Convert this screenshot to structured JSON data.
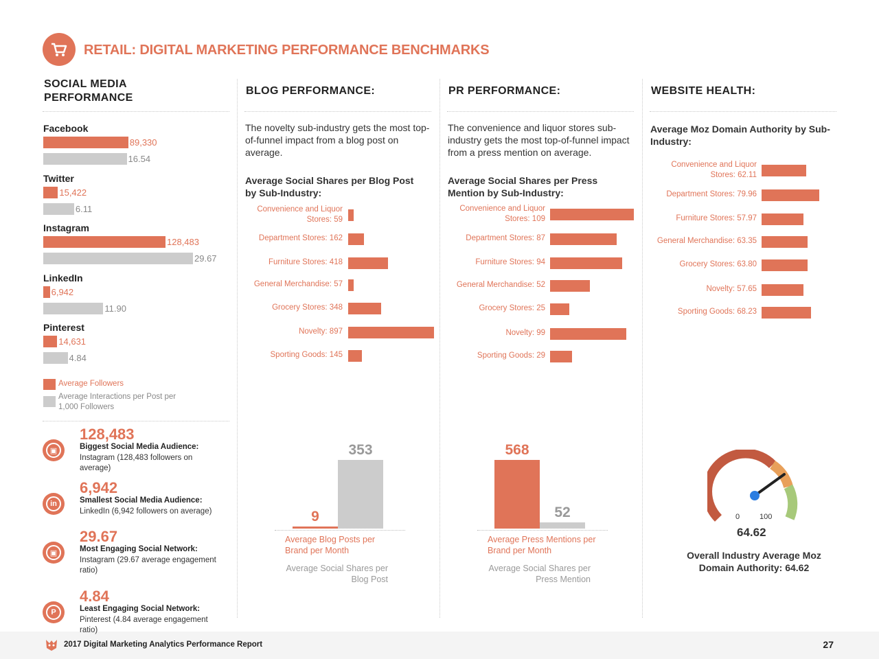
{
  "header": {
    "title": "RETAIL: DIGITAL MARKETING PERFORMANCE BENCHMARKS",
    "icon": "shopping-cart-icon",
    "accent": "#e07458"
  },
  "columns": {
    "social": {
      "heading_line1": "SOCIAL MEDIA",
      "heading_line2": "PERFORMANCE"
    },
    "blog": {
      "heading": "BLOG PERFORMANCE:"
    },
    "pr": {
      "heading": "PR PERFORMANCE:"
    },
    "web": {
      "heading": "WEBSITE HEALTH:"
    }
  },
  "blog": {
    "intro": "The novelty sub-industry gets the most top-of-funnel impact from a blog post on average.",
    "chart_title": "Average Social Shares per Blog Post by Sub-Industry:"
  },
  "pr": {
    "intro": "The convenience and liquor stores sub-industry gets the most top-of-funnel impact from a press mention on average.",
    "chart_title": "Average Social Shares per Press Mention by Sub-Industry:"
  },
  "web": {
    "chart_title": "Average Moz Domain Authority by Sub-Industry:",
    "gauge": {
      "min_label": "0",
      "max_label": "100",
      "value_label": "64.62",
      "caption": "Overall Industry Average Moz Domain Authority: 64.62"
    }
  },
  "social_legend": {
    "followers": "Average Followers",
    "interactions": "Average Interactions per Post per 1,000 Followers"
  },
  "social_stats": [
    {
      "value": "128,483",
      "title": "Biggest Social Media Audience:",
      "desc": "Instagram (128,483 followers on average)",
      "icon": "instagram-icon"
    },
    {
      "value": "6,942",
      "title": "Smallest Social Media Audience:",
      "desc": "LinkedIn (6,942 followers on average)",
      "icon": "linkedin-icon"
    },
    {
      "value": "29.67",
      "title": "Most Engaging Social Network:",
      "desc": "Instagram (29.67 average engagement ratio)",
      "icon": "instagram-icon"
    },
    {
      "value": "4.84",
      "title": "Least Engaging Social Network:",
      "desc": "Pinterest (4.84 average engagement ratio)",
      "icon": "pinterest-icon"
    }
  ],
  "footer": {
    "report": "2017 Digital Marketing Analytics Performance Report",
    "page": "27"
  },
  "chart_data": [
    {
      "id": "social",
      "type": "bar",
      "orientation": "horizontal",
      "categories": [
        "Facebook",
        "Twitter",
        "Instagram",
        "LinkedIn",
        "Pinterest"
      ],
      "series": [
        {
          "name": "Average Followers",
          "values": [
            89330,
            15422,
            128483,
            6942,
            14631
          ],
          "labels": [
            "89,330",
            "15,422",
            "128,483",
            "6,942",
            "14,631"
          ],
          "color": "#e07458"
        },
        {
          "name": "Average Interactions per Post per 1,000 Followers",
          "values": [
            16.54,
            6.11,
            29.67,
            11.9,
            4.84
          ],
          "labels": [
            "16.54",
            "6.11",
            "29.67",
            "11.90",
            "4.84"
          ],
          "color": "#cccccc"
        }
      ]
    },
    {
      "id": "blog_subindustry",
      "type": "bar",
      "orientation": "horizontal",
      "title": "Average Social Shares per Blog Post by Sub-Industry:",
      "categories": [
        "Convenience and Liquor Stores: 59",
        "Department Stores: 162",
        "Furniture Stores: 418",
        "General Merchandise: 57",
        "Grocery Stores: 348",
        "Novelty: 897",
        "Sporting Goods: 145"
      ],
      "values": [
        59,
        162,
        418,
        57,
        348,
        897,
        145
      ],
      "color": "#e07458"
    },
    {
      "id": "pr_subindustry",
      "type": "bar",
      "orientation": "horizontal",
      "title": "Average Social Shares per Press Mention by Sub-Industry:",
      "categories": [
        "Convenience and Liquor Stores: 109",
        "Department Stores: 87",
        "Furniture Stores: 94",
        "General Merchandise: 52",
        "Grocery Stores: 25",
        "Novelty: 99",
        "Sporting Goods: 29"
      ],
      "values": [
        109,
        87,
        94,
        52,
        25,
        99,
        29
      ],
      "color": "#e07458"
    },
    {
      "id": "web_subindustry",
      "type": "bar",
      "orientation": "horizontal",
      "title": "Average Moz Domain Authority by Sub-Industry:",
      "categories": [
        "Convenience and Liquor Stores: 62.11",
        "Department Stores: 79.96",
        "Furniture Stores: 57.97",
        "General Merchandise: 63.35",
        "Grocery Stores: 63.80",
        "Novelty: 57.65",
        "Sporting Goods: 68.23"
      ],
      "values": [
        62.11,
        79.96,
        57.97,
        63.35,
        63.8,
        57.65,
        68.23
      ],
      "color": "#e07458"
    },
    {
      "id": "blog_summary",
      "type": "bar",
      "categories": [
        "Average Blog Posts per Brand per Month",
        "Average Social Shares per Blog Post"
      ],
      "values": [
        9,
        353
      ],
      "labels": [
        "9",
        "353"
      ],
      "colors": [
        "#e07458",
        "#cccccc"
      ]
    },
    {
      "id": "pr_summary",
      "type": "bar",
      "categories": [
        "Average Press Mentions per Brand per Month",
        "Average Social Shares per Press Mention"
      ],
      "values": [
        568,
        52
      ],
      "labels": [
        "568",
        "52"
      ],
      "colors": [
        "#e07458",
        "#cccccc"
      ]
    }
  ]
}
